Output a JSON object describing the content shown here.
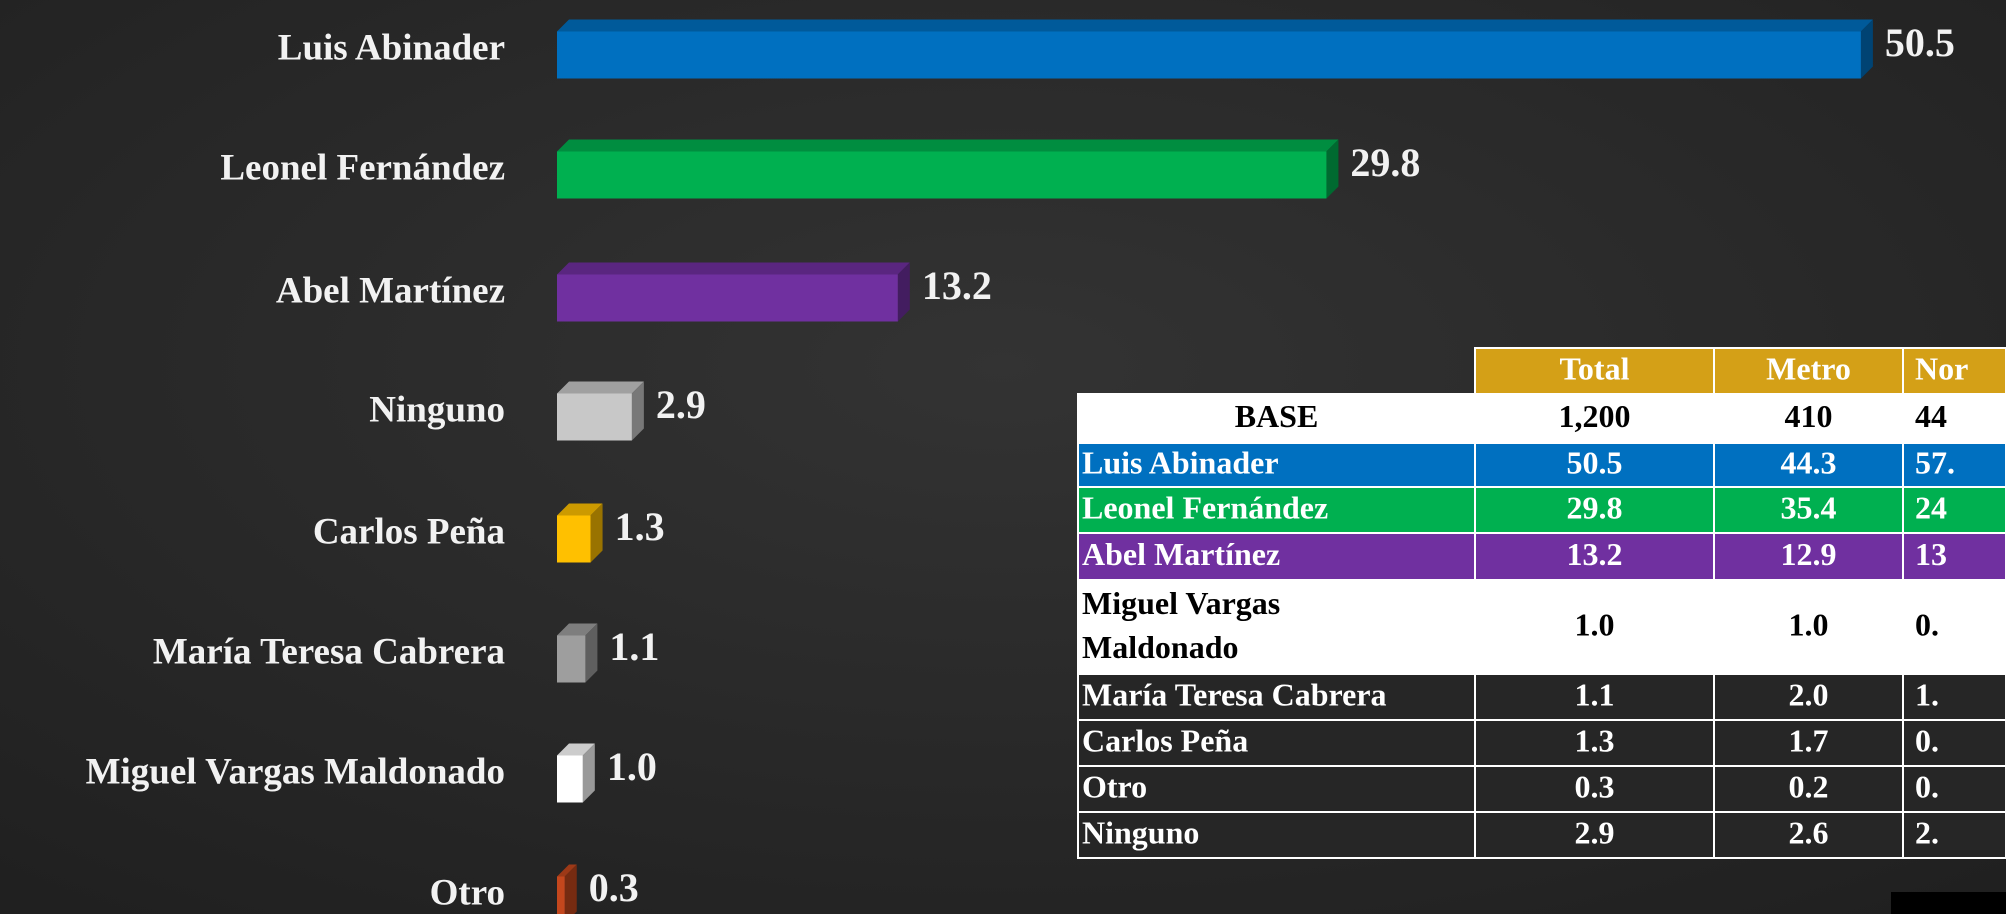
{
  "chart_data": {
    "type": "bar",
    "categories": [
      "Luis Abinader",
      "Leonel Fernández",
      "Abel Martínez",
      "Ninguno",
      "Carlos Peña",
      "María Teresa Cabrera",
      "Miguel Vargas Maldonado",
      "Otro"
    ],
    "values": [
      50.5,
      29.8,
      13.2,
      2.9,
      1.3,
      1.1,
      1.0,
      0.3
    ],
    "value_labels": [
      "50.5",
      "29.8",
      "13.2",
      "2.9",
      "1.3",
      "1.1",
      "1.0",
      "0.3"
    ],
    "colors": [
      "#0070c0",
      "#00b050",
      "#7030a0",
      "#c8c8c8",
      "#ffc000",
      "#9e9e9e",
      "#ffffff",
      "#c4471d"
    ]
  },
  "table": {
    "header": [
      "Total",
      "Metro",
      "Nor"
    ],
    "rows": [
      {
        "label": "BASE",
        "cells": [
          "1,200",
          "410",
          "44"
        ]
      },
      {
        "label": "Luis Abinader",
        "cells": [
          "50.5",
          "44.3",
          "57."
        ]
      },
      {
        "label": "Leonel Fernández",
        "cells": [
          "29.8",
          "35.4",
          "24"
        ]
      },
      {
        "label": "Abel Martínez",
        "cells": [
          "13.2",
          "12.9",
          "13"
        ]
      },
      {
        "label": "Miguel Vargas Maldonado",
        "cells": [
          "1.0",
          "1.0",
          "0."
        ]
      },
      {
        "label": "María Teresa Cabrera",
        "cells": [
          "1.1",
          "2.0",
          "1."
        ]
      },
      {
        "label": "Carlos Peña",
        "cells": [
          "1.3",
          "1.7",
          "0."
        ]
      },
      {
        "label": "Otro",
        "cells": [
          "0.3",
          "0.2",
          "0."
        ]
      },
      {
        "label": "Ninguno",
        "cells": [
          "2.9",
          "2.6",
          "2."
        ]
      }
    ]
  }
}
